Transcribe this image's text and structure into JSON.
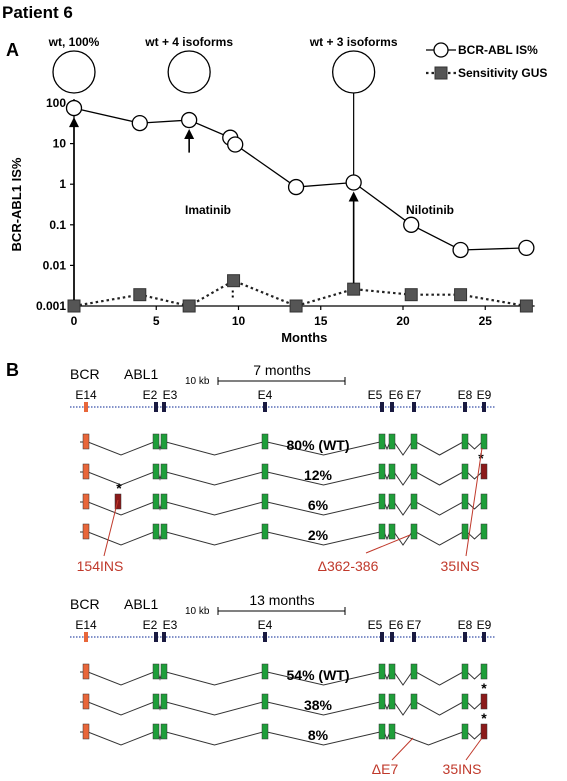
{
  "figure_title": "Patient 6",
  "panel_a_label": "A",
  "panel_b_label": "B",
  "chart_data": {
    "type": "line",
    "xlabel": "Months",
    "ylabel": "BCR-ABL1 IS%",
    "yscale": "log",
    "xlim": [
      0,
      28
    ],
    "ylim": [
      0.001,
      100
    ],
    "xticks": [
      "0",
      "5",
      "10",
      "15",
      "20",
      "25"
    ],
    "yticks": [
      "0.001",
      "0.01",
      "0.1",
      "1",
      "10",
      "100"
    ],
    "legend_position": "top-right",
    "series": [
      {
        "name": "BCR-ABL IS%",
        "marker": "open-circle",
        "line": "solid",
        "x": [
          0,
          4,
          7,
          9.5,
          9.8,
          13.5,
          17,
          20.5,
          23.5,
          27.5
        ],
        "y": [
          75,
          32,
          38,
          14,
          9.5,
          0.85,
          1.1,
          0.1,
          0.024,
          0.027
        ]
      },
      {
        "name": "Sensitivity GUS",
        "marker": "square",
        "line": "dotted",
        "x": [
          0,
          4,
          7,
          9.7,
          13.5,
          17,
          20.5,
          23.5,
          27.5
        ],
        "y": [
          0.001,
          0.0019,
          0.001,
          0.0042,
          0.001,
          0.0026,
          0.0019,
          0.0019,
          0.001
        ]
      }
    ],
    "annotations": {
      "therapy_1": "Imatinib",
      "therapy_2": "Nilotinib",
      "isoform_labels": [
        "wt, 100%",
        "wt + 4 isoforms",
        "wt + 3 isoforms"
      ],
      "arrow_months": [
        0,
        7,
        17
      ]
    }
  },
  "panel_b": {
    "exon_labels": [
      "E14",
      "E2",
      "E3",
      "E4",
      "E5",
      "E6",
      "E7",
      "E8",
      "E9"
    ],
    "gene_labels": [
      "BCR",
      "ABL1"
    ],
    "scale_label": "10 kb",
    "colors": {
      "bcr_exon": "#e8663a",
      "abl_exon": "#1f9e3a",
      "mutant_exon": "#8b1a1a",
      "annotation": "#c0392b"
    },
    "groups": [
      {
        "timepoint": "7 months",
        "rows": [
          "80% (WT)",
          "12%",
          "6%",
          "2%"
        ],
        "annotations": [
          "154INS",
          "Δ362-386",
          "35INS"
        ]
      },
      {
        "timepoint": "13 months",
        "rows": [
          "54% (WT)",
          "38%",
          "8%"
        ],
        "annotations": [
          "ΔE7",
          "35INS"
        ]
      }
    ]
  }
}
